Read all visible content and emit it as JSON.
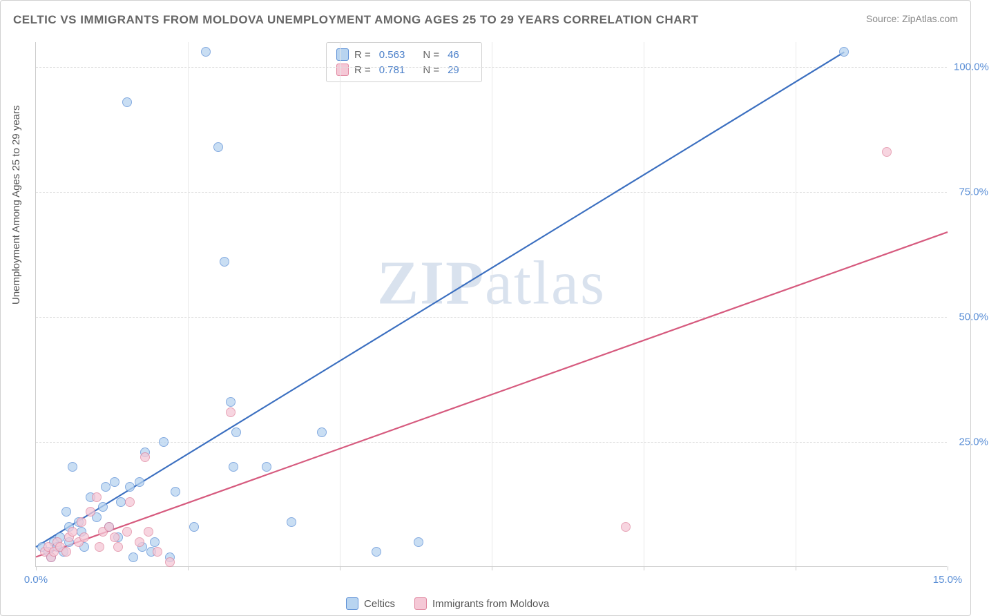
{
  "title": "CELTIC VS IMMIGRANTS FROM MOLDOVA UNEMPLOYMENT AMONG AGES 25 TO 29 YEARS CORRELATION CHART",
  "source_label": "Source: ZipAtlas.com",
  "y_axis_label": "Unemployment Among Ages 25 to 29 years",
  "watermark": {
    "part1": "ZIP",
    "part2": "atlas"
  },
  "chart": {
    "type": "scatter",
    "background_color": "#ffffff",
    "grid_color": "#dddddd",
    "axis_color": "#cccccc",
    "tick_label_color": "#5b8fd6",
    "xlim": [
      0,
      15
    ],
    "ylim": [
      0,
      105
    ],
    "y_ticks": [
      25,
      50,
      75,
      100
    ],
    "y_tick_labels": [
      "25.0%",
      "50.0%",
      "75.0%",
      "100.0%"
    ],
    "x_ticks": [
      0,
      2.5,
      5,
      7.5,
      10,
      12.5,
      15
    ],
    "x_tick_labels": [
      "0.0%",
      "",
      "",
      "",
      "",
      "",
      "15.0%"
    ],
    "marker_size": 14,
    "marker_opacity": 0.75,
    "trend_line_width": 2.2,
    "series": [
      {
        "name": "Celtics",
        "fill_color": "#b8d4f0",
        "stroke_color": "#5b8fd6",
        "line_color": "#3b6fc0",
        "r_value": "0.563",
        "n_value": "46",
        "trend": {
          "x1": 0,
          "y1": 4,
          "x2": 13.3,
          "y2": 103
        },
        "points": [
          [
            0.1,
            4
          ],
          [
            0.2,
            3
          ],
          [
            0.3,
            5
          ],
          [
            0.35,
            4
          ],
          [
            0.4,
            6
          ],
          [
            0.45,
            3
          ],
          [
            0.5,
            11
          ],
          [
            0.55,
            8
          ],
          [
            0.55,
            5
          ],
          [
            0.6,
            20
          ],
          [
            0.7,
            9
          ],
          [
            0.75,
            7
          ],
          [
            0.8,
            4
          ],
          [
            0.9,
            14
          ],
          [
            1.0,
            10
          ],
          [
            1.1,
            12
          ],
          [
            1.15,
            16
          ],
          [
            1.2,
            8
          ],
          [
            1.3,
            17
          ],
          [
            1.35,
            6
          ],
          [
            1.4,
            13
          ],
          [
            1.5,
            93
          ],
          [
            1.55,
            16
          ],
          [
            1.6,
            2
          ],
          [
            1.7,
            17
          ],
          [
            1.75,
            4
          ],
          [
            1.8,
            23
          ],
          [
            1.9,
            3
          ],
          [
            1.95,
            5
          ],
          [
            2.1,
            25
          ],
          [
            2.2,
            2
          ],
          [
            2.3,
            15
          ],
          [
            2.6,
            8
          ],
          [
            2.8,
            103
          ],
          [
            3.0,
            84
          ],
          [
            3.1,
            61
          ],
          [
            3.2,
            33
          ],
          [
            3.25,
            20
          ],
          [
            3.3,
            27
          ],
          [
            3.8,
            20
          ],
          [
            4.2,
            9
          ],
          [
            4.7,
            27
          ],
          [
            5.6,
            3
          ],
          [
            6.3,
            5
          ],
          [
            13.3,
            103
          ],
          [
            0.25,
            2
          ]
        ]
      },
      {
        "name": "Immigrants from Moldova",
        "fill_color": "#f5c8d6",
        "stroke_color": "#e0869f",
        "line_color": "#d65a7e",
        "r_value": "0.781",
        "n_value": "29",
        "trend": {
          "x1": 0,
          "y1": 2,
          "x2": 15,
          "y2": 67
        },
        "points": [
          [
            0.15,
            3
          ],
          [
            0.2,
            4
          ],
          [
            0.25,
            2
          ],
          [
            0.3,
            3
          ],
          [
            0.35,
            5
          ],
          [
            0.4,
            4
          ],
          [
            0.5,
            3
          ],
          [
            0.55,
            6
          ],
          [
            0.6,
            7
          ],
          [
            0.7,
            5
          ],
          [
            0.75,
            9
          ],
          [
            0.8,
            6
          ],
          [
            0.9,
            11
          ],
          [
            1.0,
            14
          ],
          [
            1.05,
            4
          ],
          [
            1.1,
            7
          ],
          [
            1.2,
            8
          ],
          [
            1.3,
            6
          ],
          [
            1.35,
            4
          ],
          [
            1.5,
            7
          ],
          [
            1.55,
            13
          ],
          [
            1.7,
            5
          ],
          [
            1.8,
            22
          ],
          [
            1.85,
            7
          ],
          [
            2.0,
            3
          ],
          [
            2.2,
            1
          ],
          [
            3.2,
            31
          ],
          [
            9.7,
            8
          ],
          [
            14.0,
            83
          ]
        ]
      }
    ]
  },
  "legend_top": {
    "rows": [
      {
        "swatch_fill": "#b8d4f0",
        "swatch_stroke": "#5b8fd6",
        "r_label": "R =",
        "r_value": "0.563",
        "n_label": "N =",
        "n_value": "46"
      },
      {
        "swatch_fill": "#f5c8d6",
        "swatch_stroke": "#e0869f",
        "r_label": "R =",
        "r_value": "0.781",
        "n_label": "N =",
        "n_value": "29"
      }
    ]
  },
  "legend_bottom": {
    "items": [
      {
        "swatch_fill": "#b8d4f0",
        "swatch_stroke": "#5b8fd6",
        "label": "Celtics"
      },
      {
        "swatch_fill": "#f5c8d6",
        "swatch_stroke": "#e0869f",
        "label": "Immigrants from Moldova"
      }
    ]
  }
}
